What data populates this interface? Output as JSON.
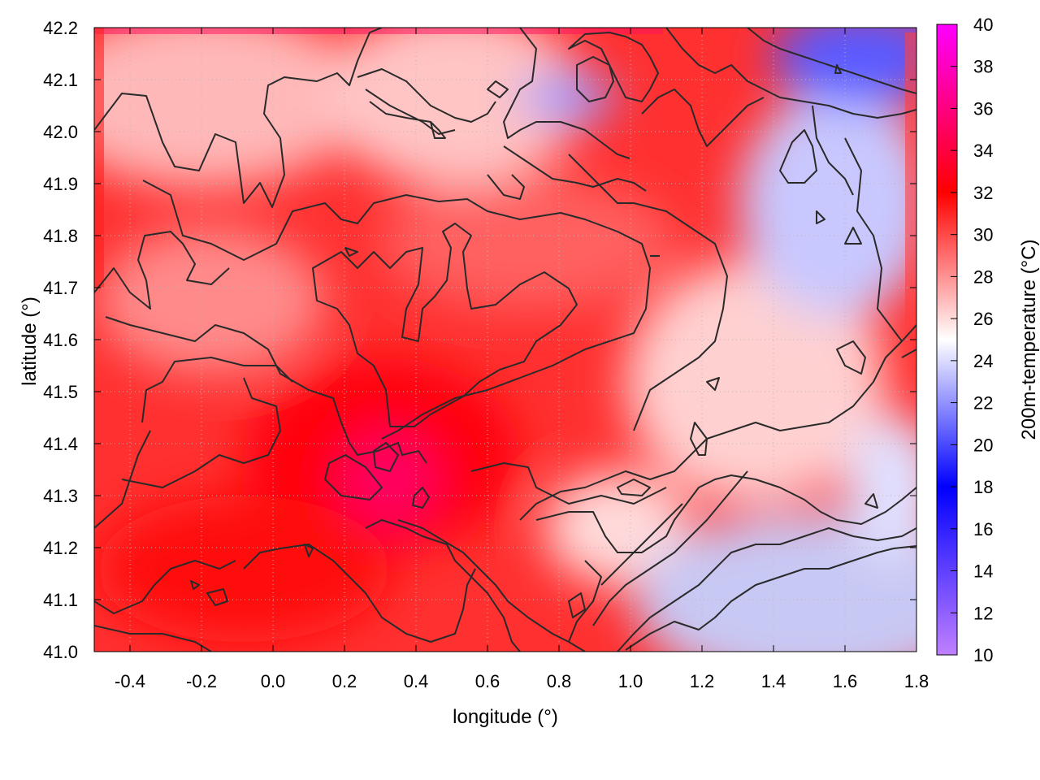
{
  "chart_data": {
    "type": "heatmap",
    "title": "",
    "xlabel": "longitude (°)",
    "ylabel": "latitude (°)",
    "colorbar_label": "200m-temperature (°C)",
    "xlim": [
      -0.5,
      1.8
    ],
    "ylim": [
      41.0,
      42.2
    ],
    "x_ticks": [
      "-0.4",
      "-0.2",
      "0.0",
      "0.2",
      "0.4",
      "0.6",
      "0.8",
      "1.0",
      "1.2",
      "1.4",
      "1.6",
      "1.8"
    ],
    "y_ticks": [
      "41.0",
      "41.1",
      "41.2",
      "41.3",
      "41.4",
      "41.5",
      "41.6",
      "41.7",
      "41.8",
      "41.9",
      "42.0",
      "42.1",
      "42.2"
    ],
    "colorbar_range": [
      10,
      40
    ],
    "colorbar_ticks": [
      "10",
      "12",
      "14",
      "16",
      "18",
      "20",
      "22",
      "24",
      "26",
      "28",
      "30",
      "32",
      "34",
      "36",
      "38",
      "40"
    ],
    "colormap": [
      {
        "value": 10,
        "color": "#c080ff"
      },
      {
        "value": 18,
        "color": "#0000ff"
      },
      {
        "value": 25,
        "color": "#ffffff"
      },
      {
        "value": 32,
        "color": "#ff0000"
      },
      {
        "value": 40,
        "color": "#ff00ff"
      }
    ],
    "grid": true,
    "contours": "topography isolines (dark grey)",
    "regions": [
      {
        "area": "central and western inland",
        "temperature_c": 32
      },
      {
        "area": "around lon 0.3-0.4, lat 41.3-41.4",
        "temperature_c": 35
      },
      {
        "area": "northwest highlands",
        "temperature_c": 28
      },
      {
        "area": "northeast mountains, lon 1.4-1.8, lat 41.8-42.2",
        "temperature_c": 21
      },
      {
        "area": "sea, southeast corner",
        "temperature_c": 23
      },
      {
        "area": "northern Pyrenees edge, lat 42.2",
        "temperature_c": 20
      }
    ]
  }
}
